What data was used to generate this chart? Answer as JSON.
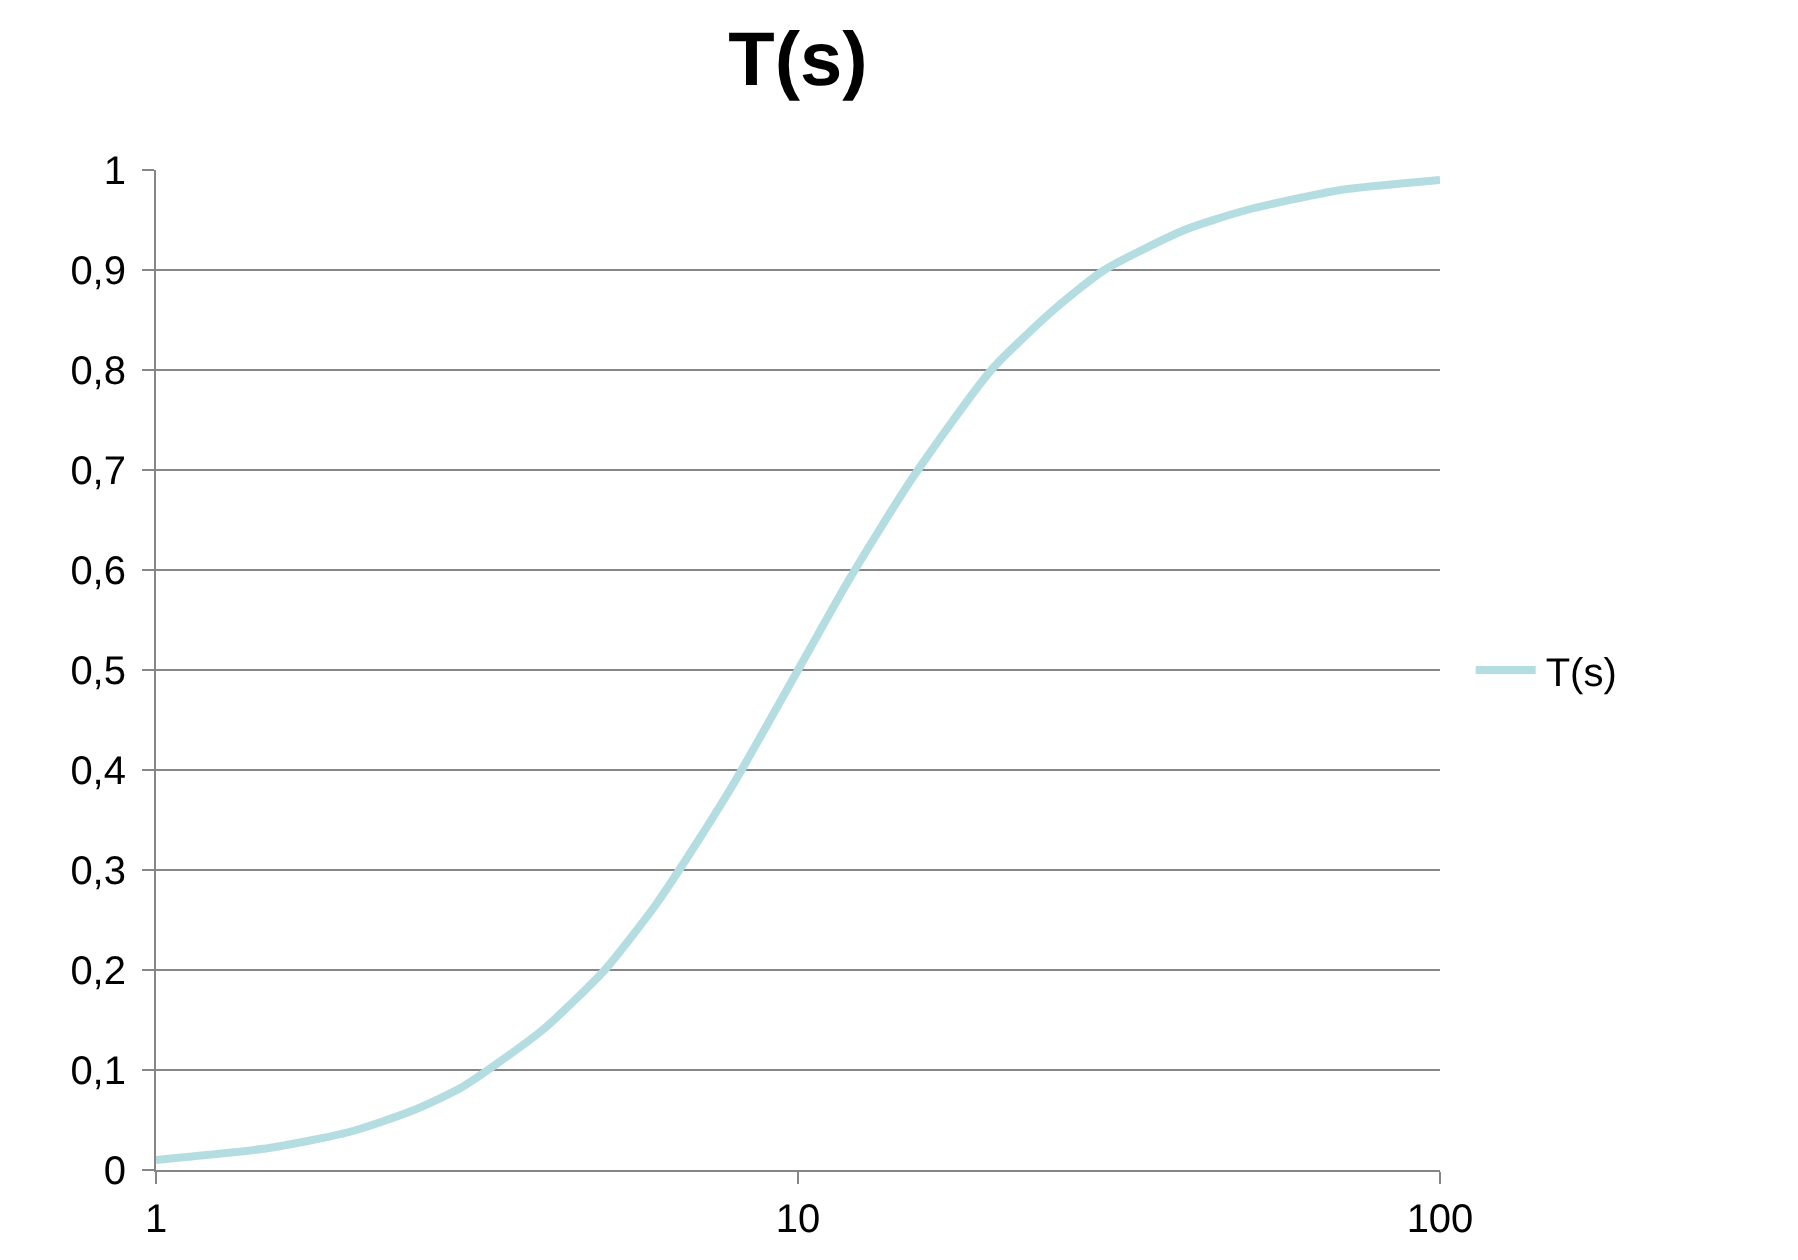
{
  "chart_data": {
    "type": "line",
    "title": "T(s)",
    "log": "x",
    "x": [
      1,
      1.5,
      2,
      2.5,
      3,
      4,
      5,
      6,
      7,
      8,
      10,
      12,
      15,
      20,
      25,
      30,
      40,
      50,
      70,
      100
    ],
    "series": [
      {
        "name": "T(s)",
        "color": "#b3dde0",
        "values": [
          0.01,
          0.022,
          0.038,
          0.059,
          0.083,
          0.14,
          0.2,
          0.265,
          0.33,
          0.39,
          0.5,
          0.59,
          0.69,
          0.8,
          0.86,
          0.9,
          0.94,
          0.96,
          0.98,
          0.99
        ]
      }
    ],
    "xlim": [
      1,
      100
    ],
    "xticks": [
      1,
      10,
      100
    ],
    "ylim": [
      0,
      1
    ],
    "yticks": [
      0,
      {
        "value": 0.1,
        "label": "0,1"
      },
      {
        "value": 0.2,
        "label": "0,2"
      },
      {
        "value": 0.3,
        "label": "0,3"
      },
      {
        "value": 0.4,
        "label": "0,4"
      },
      {
        "value": 0.5,
        "label": "0,5"
      },
      {
        "value": 0.6,
        "label": "0,6"
      },
      {
        "value": 0.7,
        "label": "0,7"
      },
      {
        "value": 0.8,
        "label": "0,8"
      },
      {
        "value": 0.9,
        "label": "0,9"
      },
      1
    ],
    "grid": "y",
    "legend": "right",
    "marker": "none",
    "line_style": "solid"
  }
}
